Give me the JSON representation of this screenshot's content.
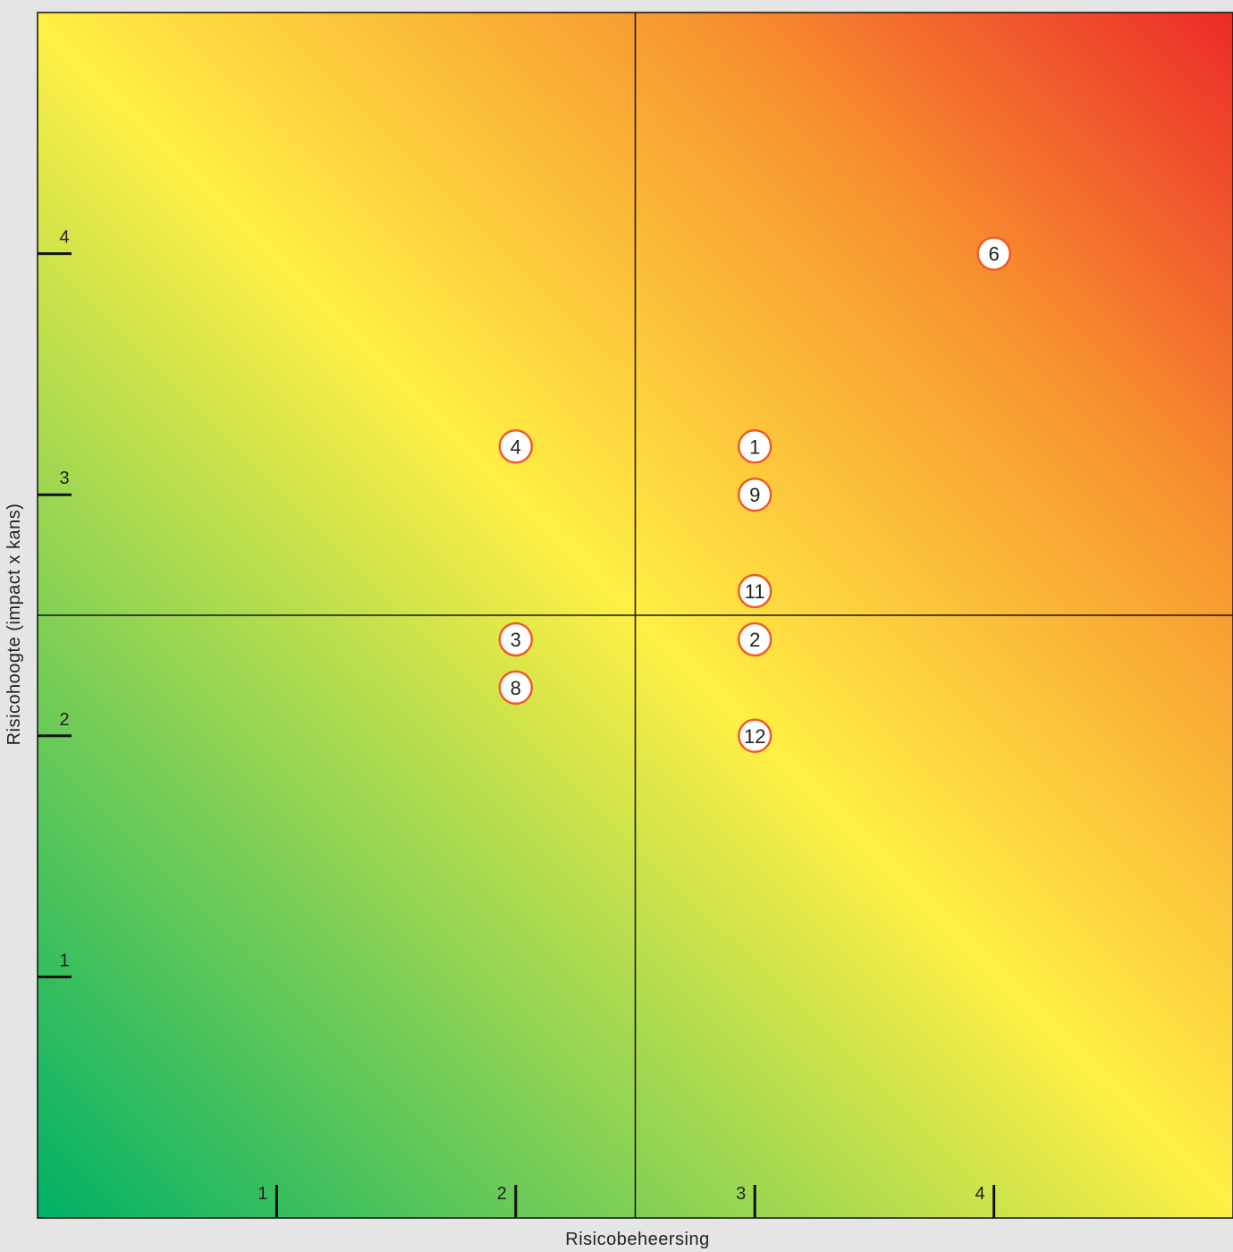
{
  "chart_data": {
    "type": "scatter",
    "xlabel": "Risicobeheersing",
    "ylabel": "Risicohoogte (impact x kans)",
    "xlim": [
      0,
      5
    ],
    "ylim": [
      0,
      5
    ],
    "x_ticks": [
      1,
      2,
      3,
      4
    ],
    "y_ticks": [
      1,
      2,
      3,
      4
    ],
    "x_tick_labels": [
      "1",
      "2",
      "3",
      "4"
    ],
    "y_tick_labels": [
      "1",
      "2",
      "3",
      "4"
    ],
    "divider_x": 2.5,
    "divider_y": 2.5,
    "background": "heatmap gradient green (bottom-left) to yellow (diagonal) to red (top-right)",
    "points": [
      {
        "label": "1",
        "x": 3,
        "y": 3.2
      },
      {
        "label": "2",
        "x": 3,
        "y": 2.4
      },
      {
        "label": "3",
        "x": 2,
        "y": 2.4
      },
      {
        "label": "4",
        "x": 2,
        "y": 3.2
      },
      {
        "label": "6",
        "x": 4,
        "y": 4
      },
      {
        "label": "8",
        "x": 2,
        "y": 2.2
      },
      {
        "label": "9",
        "x": 3,
        "y": 3
      },
      {
        "label": "11",
        "x": 3,
        "y": 2.6
      },
      {
        "label": "12",
        "x": 3,
        "y": 2
      }
    ]
  },
  "colors": {
    "gradient_start": "#00b066",
    "gradient_mid": "#ffef44",
    "gradient_orange": "#f7922f",
    "gradient_end": "#ec2a29",
    "marker_fill": "#ffffff",
    "marker_stroke": "#f05a28",
    "line": "#111111"
  }
}
